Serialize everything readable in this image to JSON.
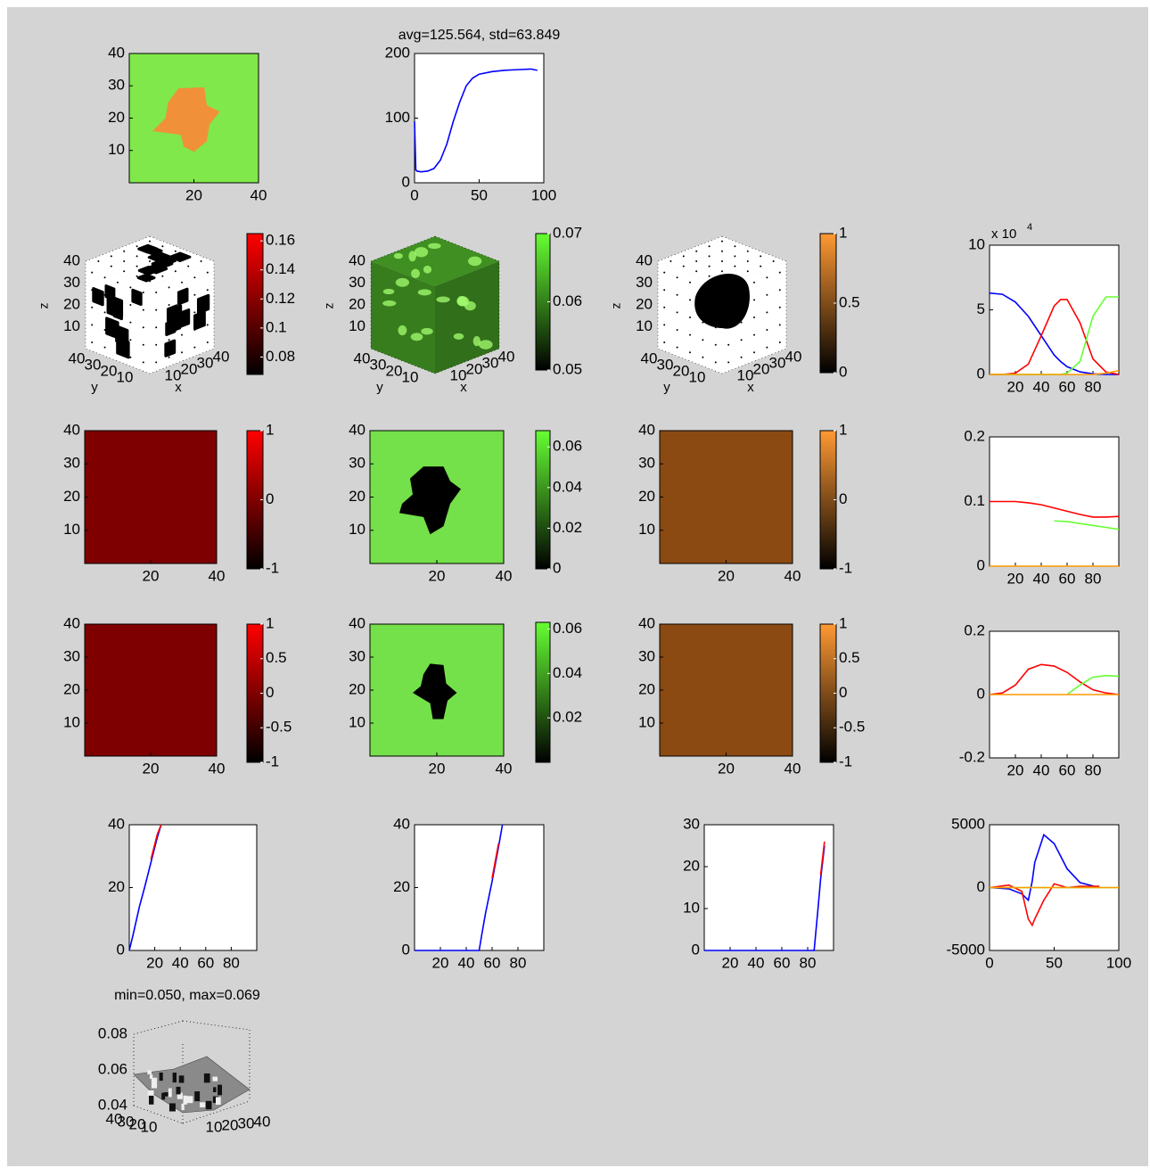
{
  "chart_data": [
    {
      "type": "image",
      "xlim": [
        0,
        40
      ],
      "ylim": [
        0,
        40
      ],
      "xticks": [
        20,
        40
      ],
      "yticks": [
        10,
        20,
        30,
        40
      ],
      "color": "#80e84a",
      "blob_color": "#f0913a"
    },
    {
      "type": "line",
      "title": "avg=125.564, std=63.849",
      "xlim": [
        0,
        100
      ],
      "ylim": [
        0,
        200
      ],
      "xticks": [
        0,
        50,
        100
      ],
      "yticks": [
        0,
        100,
        200
      ],
      "x": [
        0,
        1,
        2,
        5,
        10,
        15,
        20,
        25,
        30,
        35,
        40,
        45,
        50,
        60,
        70,
        80,
        90,
        95
      ],
      "series": [
        {
          "color": "#0000ff",
          "values": [
            95,
            20,
            18,
            17,
            18,
            22,
            35,
            60,
            95,
            125,
            150,
            162,
            168,
            172,
            174,
            175,
            176,
            174
          ]
        }
      ]
    },
    {
      "type": "cube3d",
      "xlim": [
        0,
        40
      ],
      "ylim": [
        0,
        40
      ],
      "zlim": [
        0,
        40
      ],
      "xticks": [
        10,
        20,
        30,
        40
      ],
      "yticks": [
        10,
        20,
        30,
        40
      ],
      "zticks": [
        10,
        20,
        30,
        40
      ],
      "xlabel": "x",
      "ylabel": "y",
      "zlabel": "z",
      "face_color": "#ffffff",
      "spot_color": "#000000"
    },
    {
      "type": "colorbar",
      "ylim": [
        0.068,
        0.165
      ],
      "yticks": [
        0.08,
        0.1,
        0.12,
        0.14,
        0.16
      ],
      "colors": [
        "#000000",
        "#ff0000"
      ]
    },
    {
      "type": "cube3d",
      "xlim": [
        0,
        40
      ],
      "ylim": [
        0,
        40
      ],
      "zlim": [
        0,
        40
      ],
      "xticks": [
        10,
        20,
        30,
        40
      ],
      "yticks": [
        10,
        20,
        30,
        40
      ],
      "zticks": [
        10,
        20,
        30,
        40
      ],
      "xlabel": "x",
      "ylabel": "y",
      "zlabel": "z",
      "face_color": "#3f8f22",
      "spot_color": "#a6ff70"
    },
    {
      "type": "colorbar",
      "ylim": [
        0.05,
        0.07
      ],
      "yticks": [
        0.05,
        0.06,
        0.07
      ],
      "colors": [
        "#000000",
        "#66ff33"
      ]
    },
    {
      "type": "cube3d",
      "xlim": [
        0,
        40
      ],
      "ylim": [
        0,
        40
      ],
      "zlim": [
        0,
        40
      ],
      "xticks": [
        10,
        20,
        30,
        40
      ],
      "yticks": [
        10,
        20,
        30,
        40
      ],
      "zticks": [
        10,
        20,
        30,
        40
      ],
      "xlabel": "x",
      "ylabel": "y",
      "zlabel": "z",
      "face_color": "#ffffff",
      "spot_color": "#000000"
    },
    {
      "type": "colorbar",
      "ylim": [
        0,
        1
      ],
      "yticks": [
        0,
        0.5,
        1
      ],
      "colors": [
        "#000000",
        "#ff9933"
      ]
    },
    {
      "type": "line",
      "scale_label": "x 10",
      "scale_exponent": 4,
      "xlim": [
        0,
        100
      ],
      "ylim": [
        0,
        10
      ],
      "xticks": [
        20,
        40,
        60,
        80
      ],
      "yticks": [
        0,
        5,
        10
      ],
      "x": [
        0,
        10,
        20,
        30,
        40,
        50,
        55,
        60,
        70,
        80,
        90,
        100
      ],
      "series": [
        {
          "color": "#0000ff",
          "values": [
            6.3,
            6.2,
            5.6,
            4.5,
            3,
            1.5,
            1,
            0.6,
            0.2,
            0.05,
            0,
            0
          ]
        },
        {
          "color": "#ff0000",
          "values": [
            0,
            0,
            0.1,
            0.8,
            3,
            5.3,
            5.8,
            5.8,
            4,
            1.2,
            0.2,
            0
          ]
        },
        {
          "color": "#66ff33",
          "values": [
            0,
            0,
            0,
            0,
            0,
            0,
            0,
            0.1,
            1,
            4.5,
            6,
            6
          ]
        },
        {
          "color": "#ff9900",
          "values": [
            0,
            0,
            0,
            0,
            0,
            0,
            0,
            0,
            0,
            0,
            0.1,
            0.3
          ]
        }
      ]
    },
    {
      "type": "image",
      "xlim": [
        0,
        40
      ],
      "ylim": [
        0,
        40
      ],
      "xticks": [
        20,
        40
      ],
      "yticks": [
        10,
        20,
        30,
        40
      ],
      "color": "#7f0000"
    },
    {
      "type": "colorbar",
      "ylim": [
        -1,
        1
      ],
      "yticks": [
        -1,
        0,
        1
      ],
      "colors": [
        "#000000",
        "#ff0000"
      ]
    },
    {
      "type": "image",
      "xlim": [
        0,
        40
      ],
      "ylim": [
        0,
        40
      ],
      "xticks": [
        20,
        40
      ],
      "yticks": [
        10,
        20,
        30,
        40
      ],
      "color": "#74e04a",
      "blob_color": "#000000"
    },
    {
      "type": "colorbar",
      "ylim": [
        0,
        0.068
      ],
      "yticks": [
        0,
        0.02,
        0.04,
        0.06
      ],
      "colors": [
        "#000000",
        "#66ff33"
      ]
    },
    {
      "type": "image",
      "xlim": [
        0,
        40
      ],
      "ylim": [
        0,
        40
      ],
      "xticks": [
        20,
        40
      ],
      "yticks": [
        10,
        20,
        30,
        40
      ],
      "color": "#8b4a12"
    },
    {
      "type": "colorbar",
      "ylim": [
        -1,
        1
      ],
      "yticks": [
        -1,
        0,
        1
      ],
      "colors": [
        "#000000",
        "#ff9933"
      ]
    },
    {
      "type": "line",
      "xlim": [
        0,
        100
      ],
      "ylim": [
        0,
        0.2
      ],
      "xticks": [
        20,
        40,
        60,
        80
      ],
      "yticks": [
        0,
        0.1,
        0.2
      ],
      "x": [
        0,
        10,
        20,
        30,
        40,
        50,
        60,
        70,
        80,
        90,
        100
      ],
      "series": [
        {
          "color": "#ff0000",
          "values": [
            0.1,
            0.1,
            0.1,
            0.098,
            0.095,
            0.09,
            0.085,
            0.08,
            0.076,
            0.076,
            0.077
          ]
        },
        {
          "color": "#66ff33",
          "values": [
            null,
            null,
            null,
            null,
            null,
            0.07,
            0.069,
            0.066,
            0.063,
            0.06,
            0.057
          ]
        },
        {
          "color": "#ff9900",
          "values": [
            0,
            0,
            0,
            0,
            0,
            0,
            0,
            0,
            0,
            0,
            0
          ]
        }
      ]
    },
    {
      "type": "image",
      "xlim": [
        0,
        40
      ],
      "ylim": [
        0,
        40
      ],
      "xticks": [
        20,
        40
      ],
      "yticks": [
        10,
        20,
        30,
        40
      ],
      "color": "#7f0000"
    },
    {
      "type": "colorbar",
      "ylim": [
        -1,
        1
      ],
      "yticks": [
        -1,
        -0.5,
        0,
        0.5,
        1
      ],
      "colors": [
        "#000000",
        "#ff0000"
      ]
    },
    {
      "type": "image",
      "xlim": [
        0,
        40
      ],
      "ylim": [
        0,
        40
      ],
      "xticks": [
        20,
        40
      ],
      "yticks": [
        10,
        20,
        30,
        40
      ],
      "color": "#74e04a",
      "blob_color": "#000000"
    },
    {
      "type": "colorbar",
      "ylim": [
        0,
        0.063
      ],
      "yticks": [
        0.02,
        0.04,
        0.06
      ],
      "colors": [
        "#000000",
        "#66ff33"
      ]
    },
    {
      "type": "image",
      "xlim": [
        0,
        40
      ],
      "ylim": [
        0,
        40
      ],
      "xticks": [
        20,
        40
      ],
      "yticks": [
        10,
        20,
        30,
        40
      ],
      "color": "#8b4a12"
    },
    {
      "type": "colorbar",
      "ylim": [
        -1,
        1
      ],
      "yticks": [
        -1,
        -0.5,
        0,
        0.5,
        1
      ],
      "colors": [
        "#000000",
        "#ff9933"
      ]
    },
    {
      "type": "line",
      "xlim": [
        0,
        100
      ],
      "ylim": [
        -0.2,
        0.2
      ],
      "xticks": [
        20,
        40,
        60,
        80
      ],
      "yticks": [
        -0.2,
        0,
        0.2
      ],
      "x": [
        0,
        10,
        20,
        30,
        40,
        50,
        60,
        70,
        80,
        90,
        100
      ],
      "series": [
        {
          "color": "#ff0000",
          "values": [
            0,
            0.005,
            0.03,
            0.08,
            0.095,
            0.09,
            0.07,
            0.04,
            0.015,
            0.005,
            0
          ]
        },
        {
          "color": "#66ff33",
          "values": [
            null,
            null,
            null,
            null,
            null,
            null,
            0,
            0.03,
            0.055,
            0.06,
            0.058
          ]
        },
        {
          "color": "#ff9900",
          "values": [
            0,
            0,
            0,
            0,
            0,
            0,
            0,
            0,
            0,
            0,
            0
          ]
        }
      ]
    },
    {
      "type": "line",
      "xlim": [
        0,
        100
      ],
      "ylim": [
        0,
        40
      ],
      "xticks": [
        20,
        40,
        60,
        80
      ],
      "yticks": [
        0,
        20,
        40
      ],
      "x": [
        0,
        3,
        8,
        12,
        17,
        22,
        25
      ],
      "series": [
        {
          "color": "#0000ff",
          "values": [
            0,
            5,
            14,
            20,
            28,
            36,
            40
          ]
        },
        {
          "color": "#ff0000",
          "values": [
            null,
            null,
            null,
            null,
            29,
            37,
            40
          ]
        }
      ]
    },
    {
      "type": "line",
      "xlim": [
        0,
        100
      ],
      "ylim": [
        0,
        40
      ],
      "xticks": [
        20,
        40,
        60,
        80
      ],
      "yticks": [
        0,
        20,
        40
      ],
      "x": [
        0,
        50,
        52,
        55,
        60,
        65,
        68
      ],
      "series": [
        {
          "color": "#0000ff",
          "values": [
            0,
            0,
            5,
            12,
            22,
            33,
            40
          ]
        },
        {
          "color": "#ff0000",
          "values": [
            null,
            null,
            null,
            null,
            23,
            34,
            null
          ]
        }
      ]
    },
    {
      "type": "line",
      "xlim": [
        0,
        100
      ],
      "ylim": [
        0,
        30
      ],
      "xticks": [
        20,
        40,
        60,
        80
      ],
      "yticks": [
        0,
        10,
        20,
        30
      ],
      "x": [
        0,
        85,
        88,
        90,
        93
      ],
      "series": [
        {
          "color": "#0000ff",
          "values": [
            0,
            0,
            10,
            17,
            25
          ]
        },
        {
          "color": "#ff0000",
          "values": [
            null,
            null,
            null,
            18,
            26
          ]
        }
      ]
    },
    {
      "type": "line",
      "xlim": [
        0,
        100
      ],
      "ylim": [
        -5000,
        5000
      ],
      "xticks": [
        0,
        50,
        100
      ],
      "yticks": [
        -5000,
        0,
        5000
      ],
      "x": [
        0,
        15,
        25,
        30,
        33,
        35,
        42,
        50,
        60,
        70,
        85,
        100
      ],
      "series": [
        {
          "color": "#0000ff",
          "values": [
            0,
            -100,
            -500,
            -1000,
            500,
            2000,
            4200,
            3500,
            1500,
            400,
            0,
            null
          ]
        },
        {
          "color": "#ff0000",
          "values": [
            0,
            200,
            -300,
            -2500,
            -3000,
            -2500,
            -1000,
            300,
            0,
            100,
            100,
            null
          ]
        },
        {
          "color": "#66ff33",
          "values": [
            0,
            0,
            0,
            0,
            0,
            0,
            0,
            0,
            0,
            0,
            0,
            0
          ]
        },
        {
          "color": "#ff9900",
          "values": [
            0,
            0,
            0,
            0,
            0,
            0,
            0,
            0,
            0,
            0,
            0,
            0
          ]
        }
      ]
    },
    {
      "type": "surface3d",
      "title": "min=0.050, max=0.069",
      "zlim": [
        0.04,
        0.08
      ],
      "zticks": [
        0.04,
        0.06,
        0.08
      ],
      "xticks": [
        10,
        20,
        30,
        40
      ],
      "yticks": [
        10,
        20,
        30,
        40
      ],
      "color": "#8a8a8a"
    }
  ]
}
